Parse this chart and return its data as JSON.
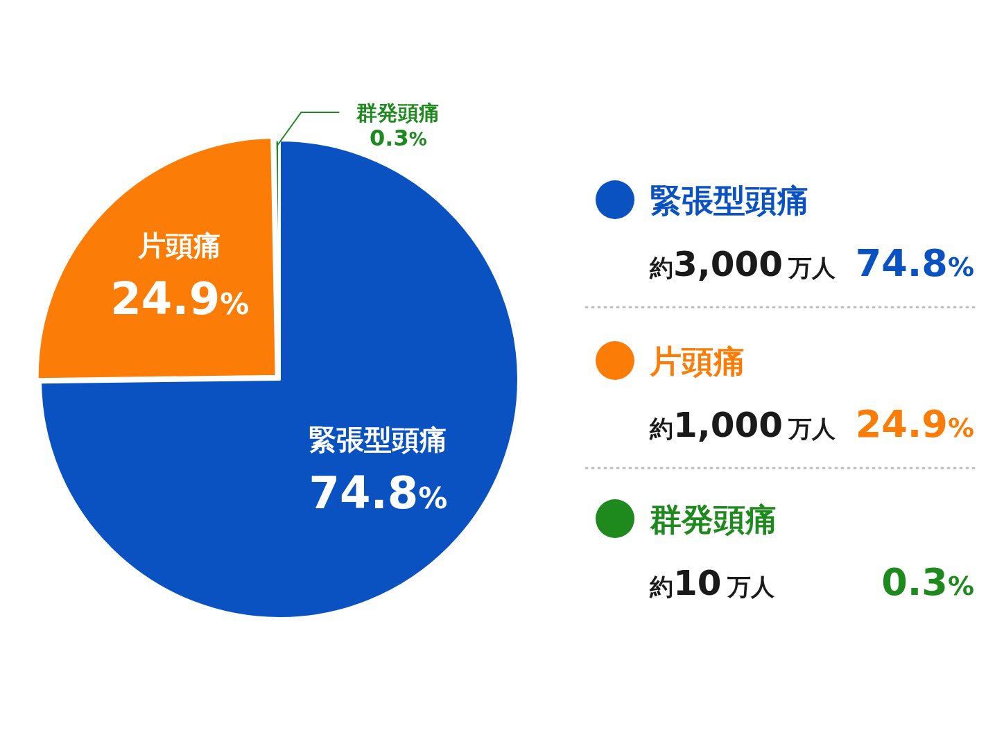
{
  "chart_data": {
    "type": "pie",
    "categories": [
      "緊張型頭痛",
      "片頭痛",
      "群発頭痛"
    ],
    "values": [
      74.8,
      24.9,
      0.3
    ],
    "colors": [
      "#0a52c2",
      "#fb7d07",
      "#1e8a1e"
    ],
    "value_labels": [
      "74.8%",
      "24.9%",
      "0.3%"
    ],
    "legend": "right",
    "annotations": [
      "約3,000万人",
      "約1,000万人",
      "約10万人"
    ]
  }
}
